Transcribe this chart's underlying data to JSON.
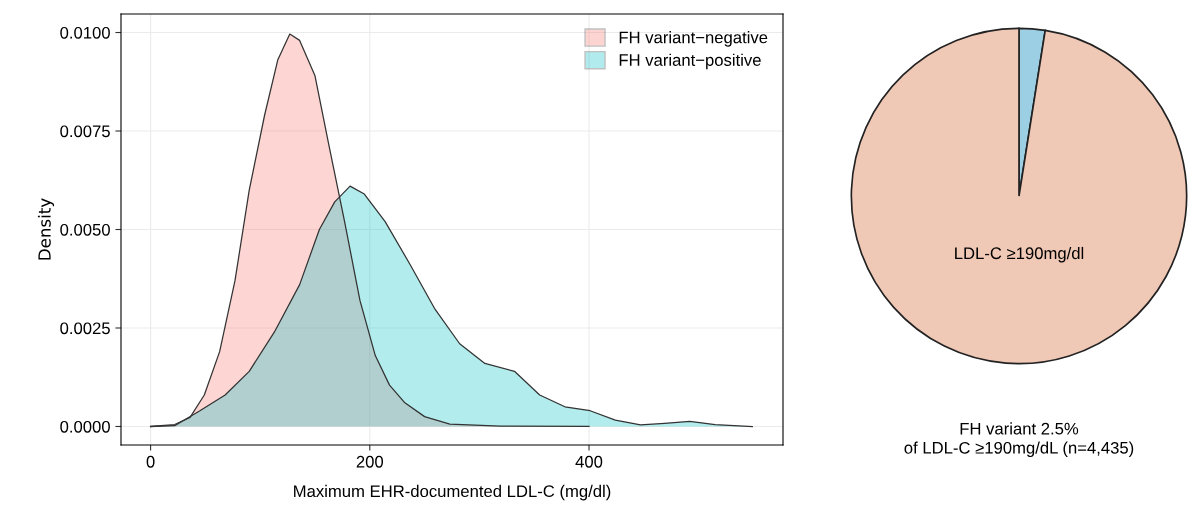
{
  "chart_data": [
    {
      "type": "area",
      "xlabel": "Maximum EHR-documented LDL-C (mg/dl)",
      "ylabel": "Density",
      "xlim": [
        -27,
        577
      ],
      "ylim": [
        -0.00047,
        0.01047
      ],
      "xticks": [
        0,
        200,
        400
      ],
      "yticks": [
        {
          "value": 0,
          "label": "0.0000"
        },
        {
          "value": 0.0025,
          "label": "0.0025"
        },
        {
          "value": 0.005,
          "label": "0.0050"
        },
        {
          "value": 0.0075,
          "label": "0.0075"
        },
        {
          "value": 0.01,
          "label": "0.0100"
        }
      ],
      "grid": true,
      "legend": "top right",
      "series": [
        {
          "name": "FH variant−negative",
          "color": "#f8766d",
          "x": [
            0,
            22,
            36,
            49,
            63,
            77,
            90,
            104,
            116,
            127,
            136,
            150,
            163,
            177,
            191,
            205,
            218,
            232,
            250,
            273,
            319,
            400
          ],
          "values": [
            0,
            5e-05,
            0.00023,
            0.0008,
            0.0019,
            0.0037,
            0.006,
            0.0079,
            0.0093,
            0.00996,
            0.0098,
            0.0089,
            0.0071,
            0.0052,
            0.0032,
            0.0018,
            0.00105,
            0.0006,
            0.00025,
            6e-05,
            1e-05,
            0
          ]
        },
        {
          "name": "FH variant−positive",
          "color": "#00bfc4",
          "x": [
            0,
            22,
            45,
            68,
            90,
            113,
            136,
            154,
            168,
            182,
            195,
            214,
            237,
            259,
            282,
            305,
            332,
            355,
            378,
            401,
            424,
            447,
            469,
            492,
            515,
            549
          ],
          "values": [
            0,
            2e-05,
            0.0004,
            0.0008,
            0.0014,
            0.0024,
            0.0036,
            0.005,
            0.0057,
            0.0061,
            0.0059,
            0.0052,
            0.0041,
            0.003,
            0.0021,
            0.0016,
            0.0014,
            0.0008,
            0.0005,
            0.0004,
            0.00016,
            4e-05,
            8e-05,
            0.00013,
            5e-05,
            0
          ]
        }
      ]
    },
    {
      "type": "pie",
      "categories": [
        null,
        "LDL-C ≥190mg/dl"
      ],
      "values": [
        2.5,
        97.5
      ],
      "colors": [
        "#9ccee4",
        "#f0c8b6"
      ],
      "annotations": [
        "FH variant 2.5%\nof LDL-C ≥190mg/dL (n=4,435)"
      ]
    }
  ]
}
